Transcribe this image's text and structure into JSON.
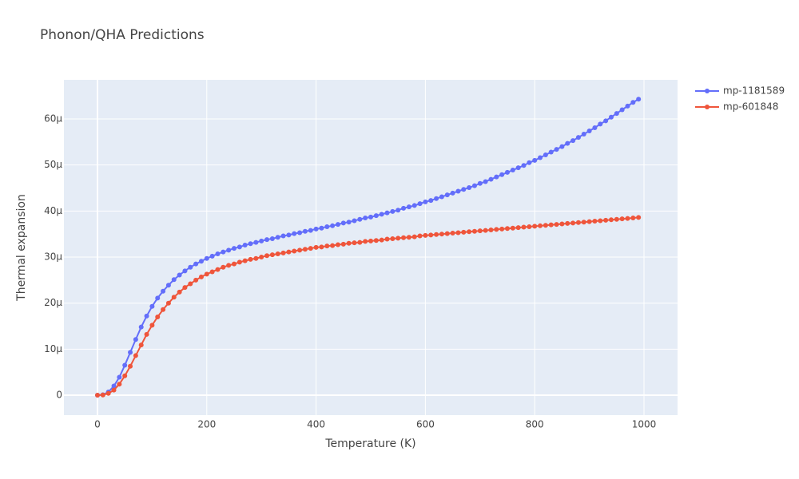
{
  "chart_data": {
    "type": "line",
    "title": "Phonon/QHA Predictions",
    "x_label": "Temperature (K)",
    "y_label": "Thermal expansion",
    "xlim": [
      -61.4,
      1061.4
    ],
    "ylim": [
      -4.33e-06,
      6.85e-05
    ],
    "xticks": [
      0,
      200,
      400,
      600,
      800,
      1000
    ],
    "yticks": [
      0,
      {
        "value": 1e-05,
        "label": "10μ"
      },
      {
        "value": 2e-05,
        "label": "20μ"
      },
      {
        "value": 3e-05,
        "label": "30μ"
      },
      {
        "value": 4e-05,
        "label": "40μ"
      },
      {
        "value": 5e-05,
        "label": "50μ"
      },
      {
        "value": 6e-05,
        "label": "60μ"
      }
    ],
    "grid": true,
    "legend": "top-right",
    "x": [
      0,
      10,
      20,
      30,
      40,
      50,
      60,
      70,
      80,
      90,
      100,
      110,
      120,
      130,
      140,
      150,
      160,
      170,
      180,
      190,
      200,
      210,
      220,
      230,
      240,
      250,
      260,
      270,
      280,
      290,
      300,
      310,
      320,
      330,
      340,
      350,
      360,
      370,
      380,
      390,
      400,
      410,
      420,
      430,
      440,
      450,
      460,
      470,
      480,
      490,
      500,
      510,
      520,
      530,
      540,
      550,
      560,
      570,
      580,
      590,
      600,
      610,
      620,
      630,
      640,
      650,
      660,
      670,
      680,
      690,
      700,
      710,
      720,
      730,
      740,
      750,
      760,
      770,
      780,
      790,
      800,
      810,
      820,
      830,
      840,
      850,
      860,
      870,
      880,
      890,
      900,
      910,
      920,
      930,
      940,
      950,
      960,
      970,
      980,
      990
    ],
    "series": [
      {
        "name": "mp-1181589",
        "color": "#636efa",
        "values": [
          0,
          1e-07,
          7e-07,
          2e-06,
          3.9e-06,
          6.5e-06,
          9.3e-06,
          1.21e-05,
          1.48e-05,
          1.72e-05,
          1.93e-05,
          2.11e-05,
          2.26e-05,
          2.39e-05,
          2.51e-05,
          2.61e-05,
          2.7e-05,
          2.78e-05,
          2.85e-05,
          2.91e-05,
          2.97e-05,
          3.02e-05,
          3.07e-05,
          3.11e-05,
          3.15e-05,
          3.19e-05,
          3.22e-05,
          3.26e-05,
          3.29e-05,
          3.32e-05,
          3.35e-05,
          3.38e-05,
          3.4e-05,
          3.43e-05,
          3.46e-05,
          3.48e-05,
          3.51e-05,
          3.53e-05,
          3.56e-05,
          3.58e-05,
          3.61e-05,
          3.63e-05,
          3.66e-05,
          3.68e-05,
          3.71e-05,
          3.74e-05,
          3.76e-05,
          3.79e-05,
          3.82e-05,
          3.85e-05,
          3.87e-05,
          3.9e-05,
          3.93e-05,
          3.96e-05,
          3.99e-05,
          4.02e-05,
          4.06e-05,
          4.09e-05,
          4.12e-05,
          4.16e-05,
          4.2e-05,
          4.23e-05,
          4.27e-05,
          4.31e-05,
          4.35e-05,
          4.39e-05,
          4.43e-05,
          4.47e-05,
          4.51e-05,
          4.55e-05,
          4.6e-05,
          4.64e-05,
          4.69e-05,
          4.74e-05,
          4.79e-05,
          4.84e-05,
          4.89e-05,
          4.94e-05,
          4.99e-05,
          5.05e-05,
          5.1e-05,
          5.16e-05,
          5.22e-05,
          5.28e-05,
          5.34e-05,
          5.4e-05,
          5.47e-05,
          5.53e-05,
          5.6e-05,
          5.67e-05,
          5.74e-05,
          5.81e-05,
          5.89e-05,
          5.96e-05,
          6.04e-05,
          6.12e-05,
          6.2e-05,
          6.28e-05,
          6.36e-05,
          6.43e-05
        ]
      },
      {
        "name": "mp-601848",
        "color": "#ef553b",
        "values": [
          0,
          5e-08,
          4e-07,
          1.1e-06,
          2.4e-06,
          4.2e-06,
          6.3e-06,
          8.6e-06,
          1.09e-05,
          1.32e-05,
          1.52e-05,
          1.7e-05,
          1.86e-05,
          2e-05,
          2.13e-05,
          2.24e-05,
          2.34e-05,
          2.42e-05,
          2.5e-05,
          2.57e-05,
          2.63e-05,
          2.68e-05,
          2.73e-05,
          2.78e-05,
          2.82e-05,
          2.85e-05,
          2.89e-05,
          2.92e-05,
          2.95e-05,
          2.97e-05,
          3e-05,
          3.03e-05,
          3.05e-05,
          3.07e-05,
          3.09e-05,
          3.11e-05,
          3.13e-05,
          3.15e-05,
          3.17e-05,
          3.19e-05,
          3.21e-05,
          3.22e-05,
          3.24e-05,
          3.25e-05,
          3.27e-05,
          3.28e-05,
          3.3e-05,
          3.31e-05,
          3.32e-05,
          3.34e-05,
          3.35e-05,
          3.36e-05,
          3.37e-05,
          3.39e-05,
          3.4e-05,
          3.41e-05,
          3.42e-05,
          3.43e-05,
          3.44e-05,
          3.46e-05,
          3.47e-05,
          3.48e-05,
          3.49e-05,
          3.5e-05,
          3.51e-05,
          3.52e-05,
          3.53e-05,
          3.54e-05,
          3.55e-05,
          3.56e-05,
          3.57e-05,
          3.58e-05,
          3.59e-05,
          3.6e-05,
          3.61e-05,
          3.62e-05,
          3.63e-05,
          3.64e-05,
          3.65e-05,
          3.66e-05,
          3.67e-05,
          3.68e-05,
          3.69e-05,
          3.7e-05,
          3.71e-05,
          3.72e-05,
          3.73e-05,
          3.74e-05,
          3.75e-05,
          3.76e-05,
          3.77e-05,
          3.78e-05,
          3.79e-05,
          3.8e-05,
          3.81e-05,
          3.82e-05,
          3.83e-05,
          3.84e-05,
          3.85e-05,
          3.86e-05
        ]
      }
    ]
  }
}
